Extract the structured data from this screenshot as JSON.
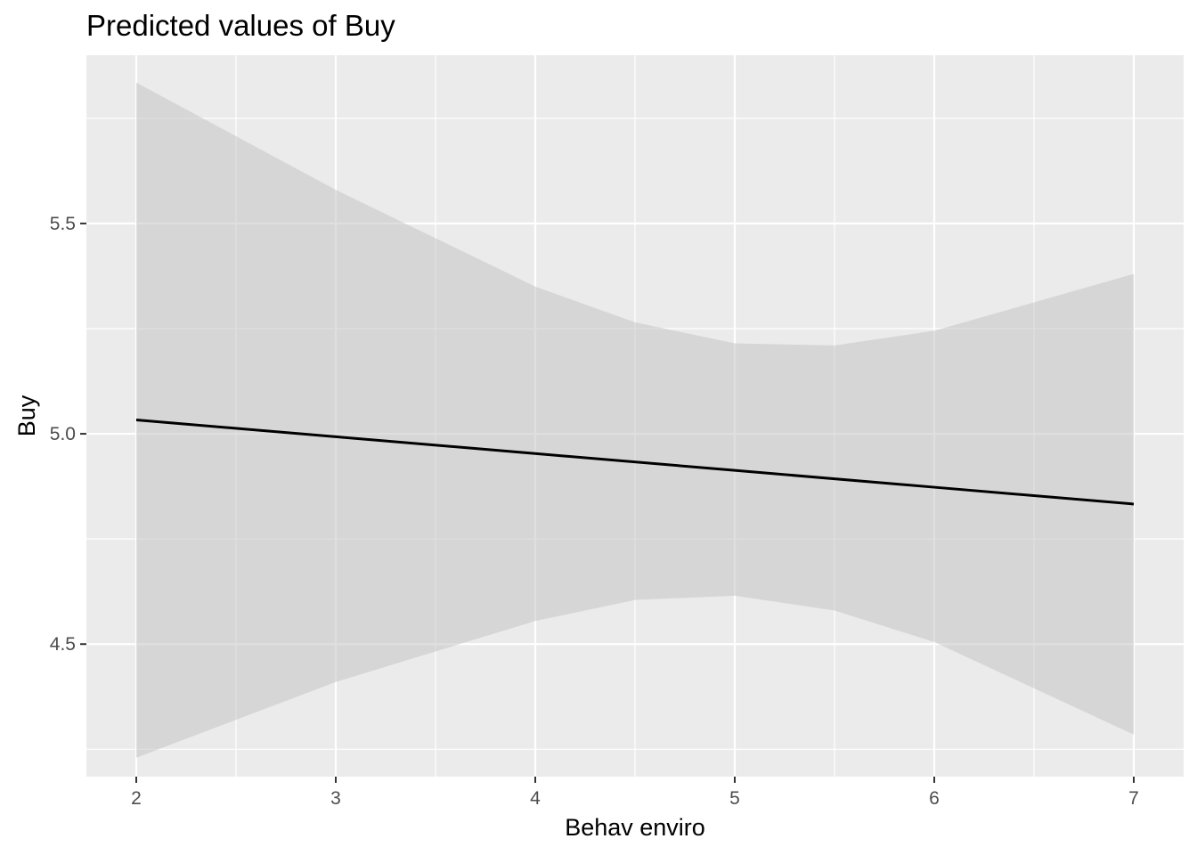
{
  "chart_data": {
    "type": "line",
    "title": "Predicted values of Buy",
    "xlabel": "Behav enviro",
    "ylabel": "Buy",
    "xlim": [
      1.75,
      7.25
    ],
    "ylim": [
      4.185,
      5.9
    ],
    "x_ticks": [
      2,
      3,
      4,
      5,
      6,
      7
    ],
    "x_minor_ticks": [
      2.5,
      3.5,
      4.5,
      5.5,
      6.5
    ],
    "y_ticks": [
      4.5,
      5.0,
      5.5
    ],
    "y_minor_ticks": [
      4.25,
      4.75,
      5.25,
      5.75
    ],
    "grid": true,
    "series": [
      {
        "x": [
          2,
          3,
          4,
          5,
          6,
          7
        ],
        "values": [
          5.033,
          4.993,
          4.953,
          4.913,
          4.873,
          4.833
        ]
      }
    ],
    "confidence_band": {
      "x": [
        2,
        3,
        4,
        4.5,
        5,
        5.5,
        6,
        7
      ],
      "lower": [
        4.23,
        4.41,
        4.555,
        4.605,
        4.615,
        4.58,
        4.505,
        4.285
      ],
      "upper": [
        5.835,
        5.58,
        5.35,
        5.265,
        5.215,
        5.21,
        5.245,
        5.38
      ]
    },
    "colors": {
      "panel": "#ebebeb",
      "grid": "#ffffff",
      "band": "#c4c4c4",
      "line": "#000000",
      "tick": "#333333"
    }
  }
}
